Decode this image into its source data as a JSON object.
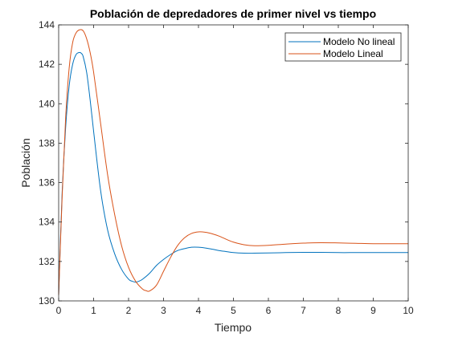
{
  "chart_data": {
    "type": "line",
    "title": "Población de depredadores de primer nivel vs tiempo",
    "xlabel": "Tiempo",
    "ylabel": "Población",
    "xlim": [
      0,
      10
    ],
    "ylim": [
      130,
      144
    ],
    "xticks": [
      "0",
      "1",
      "2",
      "3",
      "4",
      "5",
      "6",
      "7",
      "8",
      "9",
      "10"
    ],
    "yticks": [
      "130",
      "132",
      "134",
      "136",
      "138",
      "140",
      "142",
      "144"
    ],
    "legend_position": "top-right",
    "grid": false,
    "series": [
      {
        "name": "Modelo No lineal",
        "color": "#0072BD",
        "x": [
          0,
          0.1,
          0.2,
          0.3,
          0.4,
          0.5,
          0.6,
          0.65,
          0.7,
          0.8,
          0.9,
          1.0,
          1.2,
          1.4,
          1.6,
          1.8,
          2.0,
          2.1,
          2.2,
          2.3,
          2.4,
          2.6,
          2.8,
          3.0,
          3.2,
          3.4,
          3.6,
          3.8,
          4.0,
          4.2,
          4.4,
          4.6,
          4.8,
          5.0,
          5.3,
          5.6,
          6.0,
          6.5,
          7.0,
          7.5,
          8.0,
          8.5,
          9.0,
          9.5,
          10.0
        ],
        "y": [
          130.3,
          135.5,
          138.8,
          140.9,
          142.0,
          142.5,
          142.6,
          142.55,
          142.4,
          141.6,
          140.2,
          138.6,
          135.6,
          133.6,
          132.4,
          131.6,
          131.1,
          131.0,
          130.95,
          131.0,
          131.1,
          131.4,
          131.8,
          132.1,
          132.35,
          132.55,
          132.65,
          132.72,
          132.72,
          132.68,
          132.62,
          132.55,
          132.5,
          132.45,
          132.42,
          132.42,
          132.43,
          132.45,
          132.46,
          132.46,
          132.45,
          132.45,
          132.45,
          132.45,
          132.45
        ]
      },
      {
        "name": "Modelo Lineal",
        "color": "#D95319",
        "x": [
          0,
          0.1,
          0.2,
          0.3,
          0.4,
          0.5,
          0.6,
          0.7,
          0.8,
          0.9,
          1.0,
          1.2,
          1.4,
          1.6,
          1.8,
          2.0,
          2.2,
          2.4,
          2.5,
          2.6,
          2.8,
          3.0,
          3.2,
          3.4,
          3.6,
          3.8,
          4.0,
          4.2,
          4.4,
          4.6,
          4.8,
          5.0,
          5.3,
          5.6,
          6.0,
          6.5,
          7.0,
          7.5,
          8.0,
          8.5,
          9.0,
          9.5,
          10.0
        ],
        "y": [
          130.3,
          135.3,
          139.3,
          141.8,
          143.1,
          143.6,
          143.75,
          143.7,
          143.3,
          142.6,
          141.6,
          139.0,
          136.4,
          134.4,
          132.8,
          131.7,
          131.0,
          130.6,
          130.52,
          130.5,
          130.8,
          131.5,
          132.2,
          132.8,
          133.2,
          133.42,
          133.5,
          133.48,
          133.4,
          133.28,
          133.12,
          132.98,
          132.85,
          132.8,
          132.82,
          132.88,
          132.93,
          132.95,
          132.94,
          132.92,
          132.9,
          132.9,
          132.9
        ]
      }
    ]
  }
}
